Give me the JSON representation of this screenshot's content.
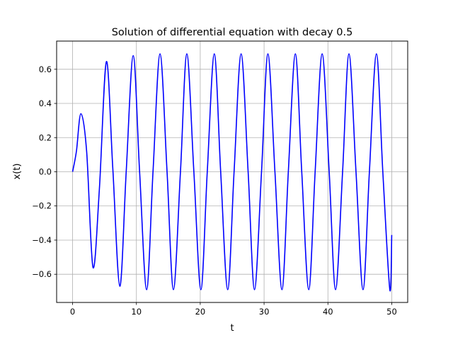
{
  "chart_data": {
    "type": "line",
    "title": "Solution of differential equation with decay 0.5",
    "xlabel": "t",
    "ylabel": "x(t)",
    "xlim": [
      -2.5,
      52.5
    ],
    "ylim": [
      -0.765,
      0.765
    ],
    "xticks": [
      0,
      10,
      20,
      30,
      40,
      50
    ],
    "xtick_labels": [
      "0",
      "10",
      "20",
      "30",
      "40",
      "50"
    ],
    "yticks": [
      -0.6,
      -0.4,
      -0.2,
      0.0,
      0.2,
      0.4,
      0.6
    ],
    "ytick_labels": [
      "−0.6",
      "−0.4",
      "−0.2",
      "0.0",
      "0.2",
      "0.4",
      "0.6"
    ],
    "grid": true,
    "series": [
      {
        "color": "#0000ff",
        "x": [
          0,
          0.6,
          1.3,
          2.2,
          3.2,
          4.2,
          5.3,
          6.3,
          7.4,
          8.4,
          9.5,
          10.5,
          11.6,
          12.6,
          13.7,
          14.8,
          15.8,
          16.9,
          17.9,
          19.0,
          20.1,
          21.1,
          22.2,
          23.2,
          24.3,
          25.3,
          26.4,
          27.5,
          28.5,
          29.6,
          30.6,
          31.7,
          32.8,
          33.8,
          34.9,
          35.9,
          37.0,
          38.0,
          39.1,
          40.2,
          41.2,
          42.3,
          43.3,
          44.4,
          45.5,
          46.5,
          47.6,
          48.6,
          49.7,
          50.0
        ],
        "y": [
          0,
          0.12,
          0.34,
          0.12,
          -0.56,
          -0.1,
          0.645,
          0.02,
          -0.67,
          0.0,
          0.68,
          0.0,
          -0.69,
          0.0,
          0.69,
          0.0,
          -0.69,
          0.0,
          0.69,
          0.0,
          -0.69,
          0.0,
          0.69,
          0.0,
          -0.69,
          0.0,
          0.69,
          0.0,
          -0.69,
          0.0,
          0.69,
          0.0,
          -0.69,
          0.0,
          0.69,
          0.0,
          -0.69,
          0.0,
          0.69,
          0.0,
          -0.69,
          0.0,
          0.69,
          0.0,
          -0.69,
          0.0,
          0.69,
          0.0,
          -0.69,
          -0.37
        ]
      }
    ]
  }
}
